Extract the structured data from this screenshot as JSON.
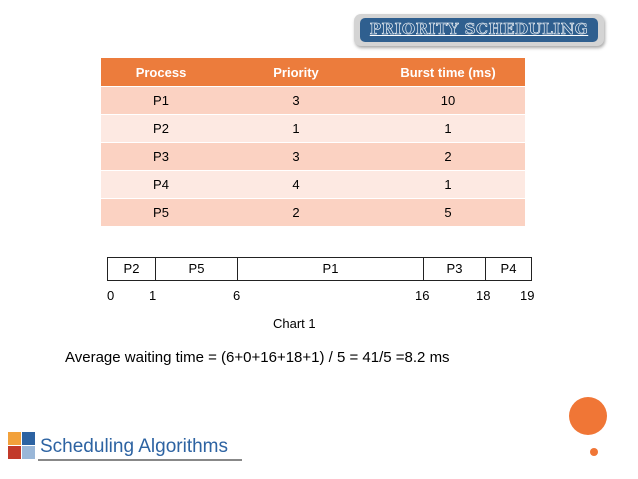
{
  "title": "PRIORITY SCHEDULING",
  "table": {
    "headers": [
      "Process",
      "Priority",
      "Burst time (ms)"
    ],
    "rows": [
      [
        "P1",
        "3",
        "10"
      ],
      [
        "P2",
        "1",
        "1"
      ],
      [
        "P3",
        "3",
        "2"
      ],
      [
        "P4",
        "4",
        "1"
      ],
      [
        "P5",
        "2",
        "5"
      ]
    ]
  },
  "gantt": {
    "segments": [
      "P2",
      "P5",
      "P1",
      "P3",
      "P4"
    ],
    "ticks": [
      "0",
      "1",
      "6",
      "16",
      "18",
      "19"
    ],
    "caption": "Chart 1"
  },
  "average_text": "Average waiting time =  (6+0+16+18+1) / 5 = 41/5 =8.2 ms",
  "footer_logo_text": "Scheduling Algorithms",
  "colors": {
    "header_orange": "#ec7c3c",
    "row_odd": "#fbd2c2",
    "row_even": "#fde9e2",
    "title_blue": "#2f5f8f",
    "accent_orange": "#f07636",
    "logo_blue": "#2d63a2"
  }
}
